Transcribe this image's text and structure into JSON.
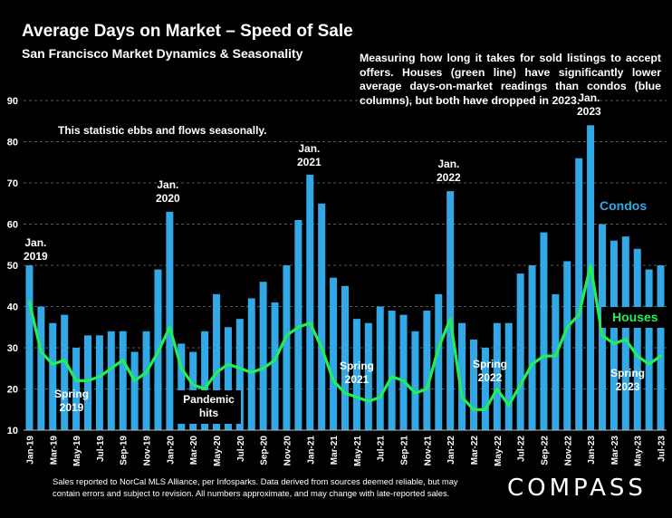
{
  "header": {
    "title": "Average Days on Market – Speed of Sale",
    "subtitle": "San Francisco Market Dynamics & Seasonality"
  },
  "description": "Measuring how long it takes for sold listings to accept offers. Houses (green line) have significantly lower average days-on-market readings than condos (blue columns), but both have dropped in 2023.",
  "annotations": {
    "ebb": "This statistic ebbs and flows seasonally.",
    "jan2019_a": "Jan.",
    "jan2019_b": "2019",
    "jan2020_a": "Jan.",
    "jan2020_b": "2020",
    "jan2021_a": "Jan.",
    "jan2021_b": "2021",
    "jan2022_a": "Jan.",
    "jan2022_b": "2022",
    "jan2023_a": "Jan.",
    "jan2023_b": "2023",
    "spring2019_a": "Spring",
    "spring2019_b": "2019",
    "spring2021_a": "Spring",
    "spring2021_b": "2021",
    "spring2022_a": "Spring",
    "spring2022_b": "2022",
    "spring2023_a": "Spring",
    "spring2023_b": "2023",
    "pandemic_a": "Pandemic",
    "pandemic_b": "hits"
  },
  "legend": {
    "condos": "Condos",
    "houses": "Houses"
  },
  "footer": {
    "note": "Sales reported to NorCal MLS Alliance, per Infosparks. Data derived from sources deemed reliable, but may contain errors and subject to revision. All numbers approximate, and may change with late-reported sales.",
    "brand": "COMPASS"
  },
  "colors": {
    "condos": "#32a8e6",
    "houses": "#22ee55",
    "background": "#000000",
    "grid": "#5a5a5a"
  },
  "chart_data": {
    "type": "bar",
    "title": "Average Days on Market – Speed of Sale",
    "subtitle": "San Francisco Market Dynamics & Seasonality",
    "ylim": [
      10,
      90
    ],
    "yticks": [
      10,
      20,
      30,
      40,
      50,
      60,
      70,
      80,
      90
    ],
    "grid": true,
    "categories": [
      "Jan-19",
      "Feb-19",
      "Mar-19",
      "Apr-19",
      "May-19",
      "Jun-19",
      "Jul-19",
      "Aug-19",
      "Sep-19",
      "Oct-19",
      "Nov-19",
      "Dec-19",
      "Jan-20",
      "Feb-20",
      "Mar-20",
      "Apr-20",
      "May-20",
      "Jun-20",
      "Jul-20",
      "Aug-20",
      "Sep-20",
      "Oct-20",
      "Nov-20",
      "Dec-20",
      "Jan-21",
      "Feb-21",
      "Mar-21",
      "Apr-21",
      "May-21",
      "Jun-21",
      "Jul-21",
      "Aug-21",
      "Sep-21",
      "Oct-21",
      "Nov-21",
      "Dec-21",
      "Jan-22",
      "Feb-22",
      "Mar-22",
      "Apr-22",
      "May-22",
      "Jun-22",
      "Jul-22",
      "Aug-22",
      "Sep-22",
      "Oct-22",
      "Nov-22",
      "Dec-22",
      "Jan-23",
      "Feb-23",
      "Mar-23",
      "Apr-23",
      "May-23",
      "Jun-23",
      "Jul-23"
    ],
    "xtick_labels": [
      "Jan-19",
      "Mar-19",
      "May-19",
      "Jul-19",
      "Sep-19",
      "Nov-19",
      "Jan-20",
      "Mar-20",
      "May-20",
      "Jul-20",
      "Sep-20",
      "Nov-20",
      "Jan-21",
      "Mar-21",
      "May-21",
      "Jul-21",
      "Sep-21",
      "Nov-21",
      "Jan-22",
      "Mar-22",
      "May-22",
      "Jul-22",
      "Sep-22",
      "Nov-22",
      "Jan-23",
      "Mar-23",
      "May-23",
      "Jul-23"
    ],
    "series": [
      {
        "name": "Condos",
        "type": "bar",
        "values": [
          50,
          40,
          36,
          38,
          30,
          33,
          33,
          34,
          34,
          29,
          34,
          49,
          63,
          31,
          29,
          34,
          43,
          35,
          37,
          42,
          46,
          41,
          50,
          61,
          72,
          65,
          47,
          45,
          37,
          36,
          40,
          39,
          38,
          34,
          39,
          43,
          68,
          36,
          32,
          30,
          36,
          36,
          48,
          50,
          58,
          43,
          51,
          76,
          84,
          60,
          56,
          57,
          54,
          49,
          50
        ]
      },
      {
        "name": "Houses",
        "type": "line",
        "values": [
          41,
          29,
          26,
          27,
          22,
          22,
          23,
          25,
          27,
          22,
          24,
          29,
          35,
          25,
          21,
          20,
          24,
          26,
          25,
          24,
          25,
          27,
          33,
          35,
          36,
          30,
          22,
          19,
          18,
          17,
          18,
          23,
          22,
          19,
          20,
          30,
          37,
          18,
          15,
          15,
          20,
          16,
          21,
          26,
          28,
          28,
          35,
          38,
          50,
          33,
          31,
          32,
          28,
          26,
          28
        ]
      }
    ]
  }
}
